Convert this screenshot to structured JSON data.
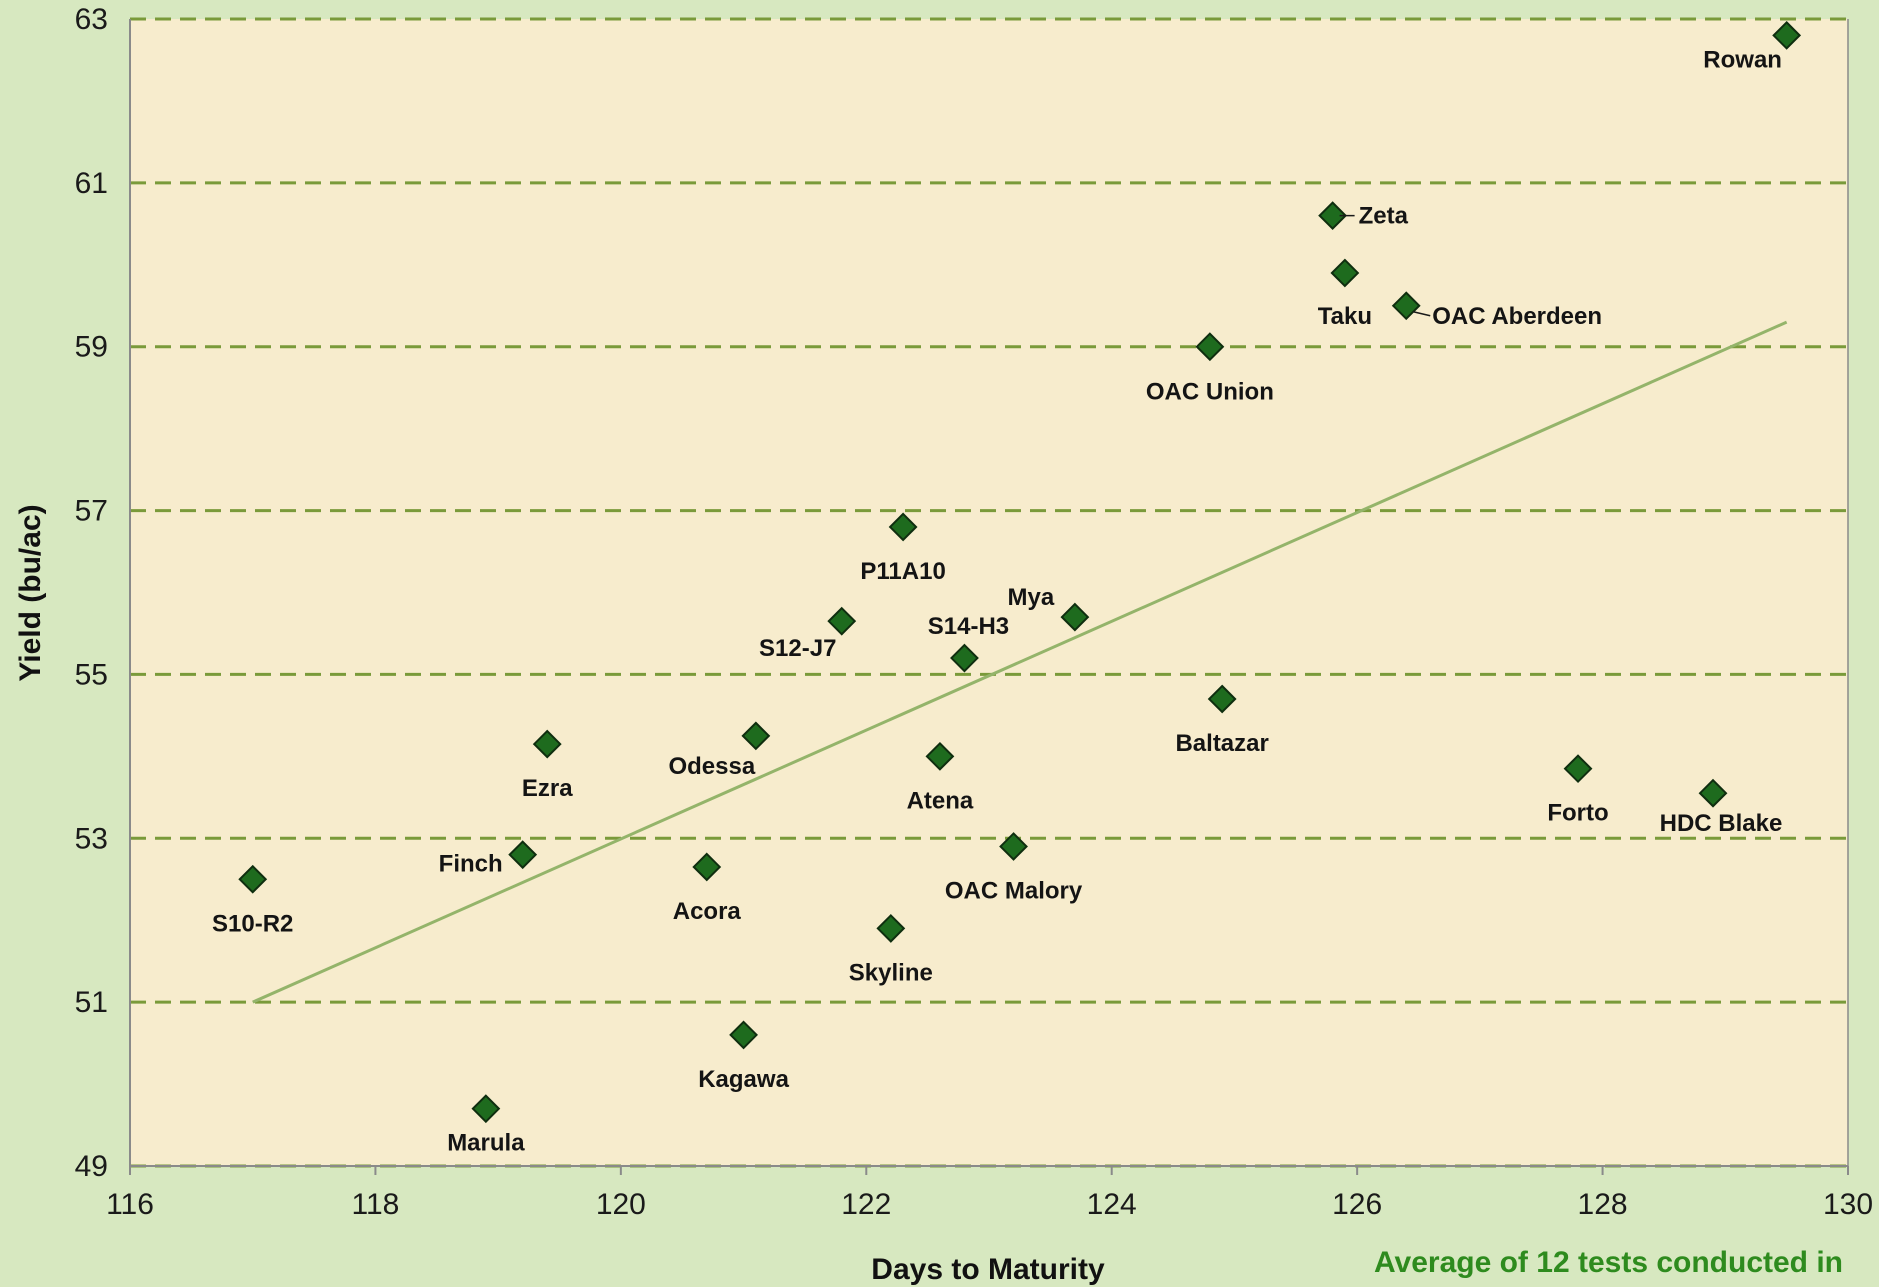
{
  "chart_data": {
    "type": "scatter",
    "title": "",
    "xlabel": "Days to Maturity",
    "ylabel": "Yield (bu/ac)",
    "xlim": [
      116,
      130
    ],
    "ylim": [
      49,
      63
    ],
    "xticks": [
      "116",
      "118",
      "120",
      "122",
      "124",
      "126",
      "128",
      "130"
    ],
    "yticks": [
      "49",
      "51",
      "53",
      "55",
      "57",
      "59",
      "61",
      "63"
    ],
    "grid": "horizontal-dashed",
    "points": [
      {
        "label": "Rowan",
        "x": 129.5,
        "y": 62.8
      },
      {
        "label": "Zeta",
        "x": 125.8,
        "y": 60.6
      },
      {
        "label": "Taku",
        "x": 125.9,
        "y": 59.9
      },
      {
        "label": "OAC Aberdeen",
        "x": 126.4,
        "y": 59.5
      },
      {
        "label": "OAC Union",
        "x": 124.8,
        "y": 59.0
      },
      {
        "label": "P11A10",
        "x": 122.3,
        "y": 56.8
      },
      {
        "label": "Mya",
        "x": 123.7,
        "y": 55.7
      },
      {
        "label": "S12-J7",
        "x": 121.8,
        "y": 55.65
      },
      {
        "label": "S14-H3",
        "x": 122.8,
        "y": 55.2
      },
      {
        "label": "Baltazar",
        "x": 124.9,
        "y": 54.7
      },
      {
        "label": "Odessa",
        "x": 121.1,
        "y": 54.25
      },
      {
        "label": "Ezra",
        "x": 119.4,
        "y": 54.15
      },
      {
        "label": "Atena",
        "x": 122.6,
        "y": 54.0
      },
      {
        "label": "Forto",
        "x": 127.8,
        "y": 53.85
      },
      {
        "label": "HDC Blake",
        "x": 128.9,
        "y": 53.55
      },
      {
        "label": "OAC Malory",
        "x": 123.2,
        "y": 52.9
      },
      {
        "label": "Finch",
        "x": 119.2,
        "y": 52.8
      },
      {
        "label": "Acora",
        "x": 120.7,
        "y": 52.65
      },
      {
        "label": "S10-R2",
        "x": 117.0,
        "y": 52.5
      },
      {
        "label": "Skyline",
        "x": 122.2,
        "y": 51.9
      },
      {
        "label": "Kagawa",
        "x": 121.0,
        "y": 50.6
      },
      {
        "label": "Marula",
        "x": 118.9,
        "y": 49.7
      }
    ],
    "trendline": {
      "x": [
        117.0,
        129.5
      ],
      "y": [
        51.0,
        59.3
      ]
    },
    "colors": {
      "marker": "#1e6b1e",
      "gridline": "#7a9a3a",
      "trend": "#94b46a",
      "plot_bg": "#f7eccd",
      "note": "#2e8b1e"
    },
    "note": "Average of 12 tests conducted in"
  }
}
